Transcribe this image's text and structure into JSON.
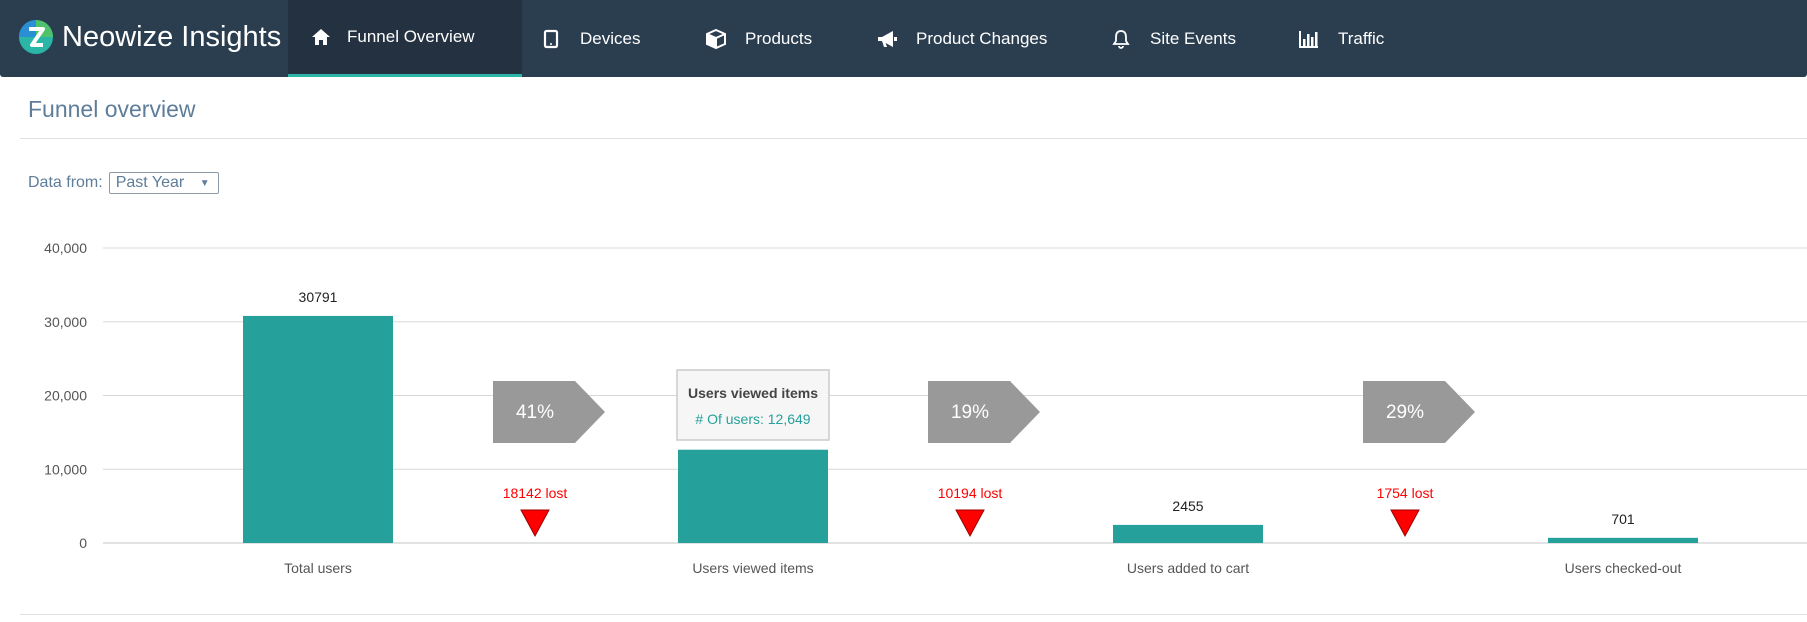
{
  "brand": {
    "name": "Neowize Insights"
  },
  "nav": [
    {
      "label": "Funnel Overview",
      "icon": "home-icon",
      "active": true
    },
    {
      "label": "Devices",
      "icon": "tablet-icon"
    },
    {
      "label": "Products",
      "icon": "cube-icon"
    },
    {
      "label": "Product Changes",
      "icon": "megaphone-icon"
    },
    {
      "label": "Site Events",
      "icon": "bell-icon"
    },
    {
      "label": "Traffic",
      "icon": "bar-chart-icon"
    }
  ],
  "page": {
    "title": "Funnel overview"
  },
  "filter": {
    "label": "Data from:",
    "value": "Past Year"
  },
  "colors": {
    "bar": "#26a09a",
    "arrow": "#999999",
    "lost": "#ff0000",
    "nav_bg": "#2b3e50",
    "accent": "#2ab5a6"
  },
  "chart_data": {
    "type": "bar",
    "categories": [
      "Total users",
      "Users viewed items",
      "Users added to cart",
      "Users checked-out"
    ],
    "values": [
      30791,
      12649,
      2455,
      701
    ],
    "value_labels": [
      "30791",
      "12649",
      "2455",
      "701"
    ],
    "y_ticks": [
      {
        "value": 0,
        "label": "0"
      },
      {
        "value": 10000,
        "label": "10,000"
      },
      {
        "value": 20000,
        "label": "20,000"
      },
      {
        "value": 30000,
        "label": "30,000"
      },
      {
        "value": 40000,
        "label": "40,000"
      }
    ],
    "ylim": [
      0,
      40000
    ],
    "grid": true,
    "conversion_rates": [
      "41%",
      "19%",
      "29%"
    ],
    "lost_labels": [
      "18142 lost",
      "10194 lost",
      "1754 lost"
    ],
    "tooltip": {
      "category_index": 1,
      "title": "Users viewed items",
      "series_label": "# Of users: 12,649"
    }
  }
}
